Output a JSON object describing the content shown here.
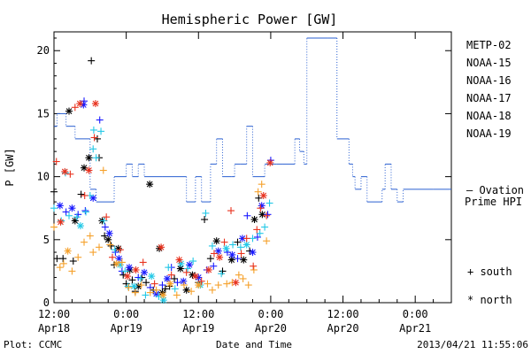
{
  "chart_data": {
    "type": "scatter",
    "title": "Hemispheric Power [GW]",
    "xlabel": "Date and Time",
    "ylabel": "P [GW]",
    "ylim": [
      0,
      21
    ],
    "yticks": [
      "0",
      "5",
      "10",
      "15",
      "20"
    ],
    "xlim": [
      0,
      66
    ],
    "x_unit": "hours since 2013-04-18 12:00 UT",
    "xticks": [
      {
        "x": 0,
        "line1": "12:00",
        "line2": "Apr18"
      },
      {
        "x": 12,
        "line1": "0:00",
        "line2": "Apr19"
      },
      {
        "x": 24,
        "line1": "12:00",
        "line2": "Apr19"
      },
      {
        "x": 36,
        "line1": "0:00",
        "line2": "Apr20"
      },
      {
        "x": 48,
        "line1": "12:00",
        "line2": "Apr20"
      },
      {
        "x": 60,
        "line1": "0:00",
        "line2": "Apr21"
      }
    ],
    "legend": {
      "placement": "right",
      "satellites": [
        {
          "name": "METP-02",
          "color": "#000000"
        },
        {
          "name": "NOAA-15",
          "color": "#1a1aff"
        },
        {
          "name": "NOAA-16",
          "color": "#22c8e6"
        },
        {
          "name": "NOAA-17",
          "color": "#33e68a"
        },
        {
          "name": "NOAA-18",
          "color": "#f5a02a"
        },
        {
          "name": "NOAA-19",
          "color": "#e8321e"
        }
      ],
      "ovation_label_1": "— Ovation",
      "ovation_label_2": "Prime HPI",
      "ovation_color": "#2a5fd1",
      "south_label": "+ south",
      "north_label": "* north"
    },
    "ovation_series": {
      "name": "Ovation Prime HPI",
      "steps": [
        [
          -1,
          14
        ],
        [
          0.5,
          15
        ],
        [
          2,
          14
        ],
        [
          3.5,
          13
        ],
        [
          6,
          9
        ],
        [
          7,
          8
        ],
        [
          10,
          10
        ],
        [
          12,
          11
        ],
        [
          13,
          10
        ],
        [
          14,
          11
        ],
        [
          15,
          10
        ],
        [
          18,
          10
        ],
        [
          22,
          8
        ],
        [
          23.5,
          10
        ],
        [
          24.5,
          8
        ],
        [
          26,
          11
        ],
        [
          27,
          13
        ],
        [
          28,
          10
        ],
        [
          29.5,
          10
        ],
        [
          30,
          11
        ],
        [
          31,
          11
        ],
        [
          32,
          14
        ],
        [
          33,
          10
        ],
        [
          35,
          11
        ],
        [
          36.5,
          11
        ],
        [
          37,
          11
        ],
        [
          38,
          11
        ],
        [
          40,
          13
        ],
        [
          40.8,
          12
        ],
        [
          41.5,
          11
        ],
        [
          42,
          21
        ],
        [
          45.5,
          21
        ],
        [
          47,
          13
        ],
        [
          49,
          11
        ],
        [
          49.6,
          10
        ],
        [
          50,
          9
        ],
        [
          51,
          10
        ],
        [
          52,
          8
        ],
        [
          54.5,
          9
        ],
        [
          55,
          11
        ],
        [
          56,
          9
        ],
        [
          57,
          8
        ],
        [
          58,
          9
        ],
        [
          63,
          9
        ],
        [
          66,
          9
        ]
      ]
    },
    "series": [
      {
        "name": "METP-02",
        "color": "#000000",
        "points": [
          [
            0,
            8.8,
            "s"
          ],
          [
            0.5,
            3.5,
            "s"
          ],
          [
            1.5,
            3.5,
            "s"
          ],
          [
            2.5,
            15.2,
            "n"
          ],
          [
            3.5,
            6.5,
            "n"
          ],
          [
            3.2,
            3.3,
            "s"
          ],
          [
            4.5,
            8.6,
            "s"
          ],
          [
            5,
            10.7,
            "n"
          ],
          [
            6.2,
            19.2,
            "s"
          ],
          [
            5.8,
            11.5,
            "n"
          ],
          [
            7.2,
            13.0,
            "s"
          ],
          [
            7.5,
            11.5,
            "s"
          ],
          [
            8,
            6.5,
            "n"
          ],
          [
            8.4,
            5.3,
            "s"
          ],
          [
            9,
            5.0,
            "n"
          ],
          [
            9.5,
            4.5,
            "s"
          ],
          [
            10,
            3.0,
            "s"
          ],
          [
            10.7,
            4.3,
            "n"
          ],
          [
            11.5,
            2.2,
            "s"
          ],
          [
            12,
            1.5,
            "s"
          ],
          [
            12.6,
            2.6,
            "n"
          ],
          [
            13,
            1.8,
            "s"
          ],
          [
            13.5,
            0.9,
            "s"
          ],
          [
            14,
            1.3,
            "n"
          ],
          [
            14.6,
            2.0,
            "s"
          ],
          [
            15.3,
            1.6,
            "s"
          ],
          [
            15.9,
            9.4,
            "n"
          ],
          [
            16.5,
            1.0,
            "s"
          ],
          [
            17.5,
            4.3,
            "n"
          ],
          [
            18,
            0.8,
            "n"
          ],
          [
            18.5,
            1.1,
            "s"
          ],
          [
            19.2,
            1.3,
            "s"
          ],
          [
            20,
            1.9,
            "s"
          ],
          [
            21,
            2.7,
            "n"
          ],
          [
            22,
            1.0,
            "n"
          ],
          [
            23,
            2.2,
            "n"
          ],
          [
            24,
            1.6,
            "s"
          ],
          [
            25,
            6.6,
            "s"
          ],
          [
            26,
            3.5,
            "s"
          ],
          [
            27,
            4.9,
            "n"
          ],
          [
            28,
            2.5,
            "s"
          ],
          [
            29.5,
            3.4,
            "n"
          ],
          [
            30.5,
            4.8,
            "s"
          ],
          [
            31.5,
            3.4,
            "n"
          ],
          [
            32.5,
            4.1,
            "s"
          ],
          [
            33.3,
            6.6,
            "n"
          ],
          [
            34,
            8.3,
            "s"
          ],
          [
            34.6,
            7.0,
            "n"
          ]
        ]
      },
      {
        "name": "NOAA-15",
        "color": "#1a1aff",
        "points": [
          [
            1,
            7.7,
            "n"
          ],
          [
            2,
            7.2,
            "s"
          ],
          [
            3,
            7.5,
            "n"
          ],
          [
            4,
            7.0,
            "s"
          ],
          [
            4.9,
            15.7,
            "n"
          ],
          [
            5,
            16.0,
            "s"
          ],
          [
            5.2,
            7.3,
            "s"
          ],
          [
            6.5,
            8.3,
            "n"
          ],
          [
            7.6,
            14.5,
            "s"
          ],
          [
            8.5,
            6.0,
            "s"
          ],
          [
            9.2,
            5.5,
            "n"
          ],
          [
            10.2,
            4.0,
            "s"
          ],
          [
            10.8,
            3.5,
            "n"
          ],
          [
            11.3,
            2.5,
            "s"
          ],
          [
            12.5,
            2.8,
            "n"
          ],
          [
            14,
            2.0,
            "s"
          ],
          [
            15,
            2.4,
            "n"
          ],
          [
            16,
            1.2,
            "s"
          ],
          [
            17,
            0.7,
            "n"
          ],
          [
            18,
            1.4,
            "s"
          ],
          [
            18.8,
            1.9,
            "n"
          ],
          [
            19.5,
            2.8,
            "s"
          ],
          [
            20.5,
            1.6,
            "s"
          ],
          [
            21.5,
            1.7,
            "n"
          ],
          [
            22.5,
            3.0,
            "n"
          ],
          [
            24,
            2.0,
            "n"
          ],
          [
            25.4,
            2.6,
            "s"
          ],
          [
            26.5,
            2.9,
            "s"
          ],
          [
            27.3,
            4.1,
            "n"
          ],
          [
            28.8,
            4.0,
            "s"
          ],
          [
            29.6,
            3.8,
            "n"
          ],
          [
            30.5,
            3.5,
            "s"
          ],
          [
            31.3,
            5.1,
            "n"
          ],
          [
            32.1,
            6.9,
            "s"
          ],
          [
            33,
            4.0,
            "n"
          ],
          [
            33.8,
            5.2,
            "s"
          ],
          [
            34.5,
            7.7,
            "n"
          ],
          [
            35.5,
            7.0,
            "s"
          ],
          [
            36,
            11.3,
            "s"
          ]
        ]
      },
      {
        "name": "NOAA-16",
        "color": "#22c8e6",
        "points": [
          [
            0,
            7.5,
            "s"
          ],
          [
            1.2,
            6.5,
            "s"
          ],
          [
            1.9,
            10.3,
            "s"
          ],
          [
            2.5,
            6.9,
            "s"
          ],
          [
            3.8,
            6.8,
            "s"
          ],
          [
            4.4,
            6.1,
            "n"
          ],
          [
            5.3,
            7.2,
            "s"
          ],
          [
            6,
            8.5,
            "s"
          ],
          [
            6.6,
            13.7,
            "s"
          ],
          [
            6.5,
            12.2,
            "s"
          ],
          [
            7,
            11.5,
            "s"
          ],
          [
            7.8,
            13.6,
            "s"
          ],
          [
            8.3,
            6.5,
            "s"
          ],
          [
            10.1,
            4.2,
            "s"
          ],
          [
            11,
            3.0,
            "n"
          ],
          [
            11.8,
            2.5,
            "s"
          ],
          [
            12.3,
            1.3,
            "s"
          ],
          [
            13.3,
            1.3,
            "n"
          ],
          [
            14.4,
            1.9,
            "s"
          ],
          [
            15.2,
            0.6,
            "s"
          ],
          [
            16.2,
            2.1,
            "n"
          ],
          [
            17.4,
            0.5,
            "s"
          ],
          [
            18.2,
            0.2,
            "n"
          ],
          [
            19,
            2.8,
            "s"
          ],
          [
            20.1,
            1.1,
            "s"
          ],
          [
            21.1,
            3.1,
            "n"
          ],
          [
            22.2,
            2.7,
            "s"
          ],
          [
            23.1,
            3.3,
            "s"
          ],
          [
            24.3,
            1.4,
            "n"
          ],
          [
            25.2,
            7.1,
            "s"
          ],
          [
            26.3,
            4.5,
            "s"
          ],
          [
            27.8,
            2.3,
            "s"
          ],
          [
            28.6,
            4.3,
            "n"
          ],
          [
            29.7,
            4.6,
            "s"
          ],
          [
            31,
            4.4,
            "s"
          ],
          [
            32,
            4.6,
            "n"
          ],
          [
            33,
            5.1,
            "s"
          ],
          [
            34.2,
            5.5,
            "s"
          ],
          [
            35,
            6.0,
            "s"
          ],
          [
            35.8,
            7.9,
            "s"
          ]
        ]
      },
      {
        "name": "NOAA-18",
        "color": "#f5a02a",
        "points": [
          [
            0,
            6.0,
            "s"
          ],
          [
            1,
            2.8,
            "s"
          ],
          [
            1.6,
            3.1,
            "s"
          ],
          [
            2.3,
            4.1,
            "n"
          ],
          [
            3,
            2.5,
            "s"
          ],
          [
            4,
            3.6,
            "s"
          ],
          [
            5,
            4.8,
            "s"
          ],
          [
            6,
            5.3,
            "s"
          ],
          [
            6.5,
            4.0,
            "s"
          ],
          [
            7.5,
            4.4,
            "s"
          ],
          [
            8.2,
            10.5,
            "s"
          ],
          [
            9.3,
            4.6,
            "s"
          ],
          [
            10.4,
            3.1,
            "n"
          ],
          [
            11.3,
            3.2,
            "s"
          ],
          [
            12.4,
            1.2,
            "s"
          ],
          [
            13.5,
            0.8,
            "s"
          ],
          [
            14.5,
            1.4,
            "s"
          ],
          [
            16,
            0.8,
            "s"
          ],
          [
            17,
            1.0,
            "s"
          ],
          [
            18.1,
            0.6,
            "n"
          ],
          [
            19.3,
            1.5,
            "n"
          ],
          [
            20.4,
            0.6,
            "s"
          ],
          [
            21.6,
            1.4,
            "s"
          ],
          [
            22.8,
            0.9,
            "s"
          ],
          [
            24,
            1.4,
            "n"
          ],
          [
            25.5,
            1.5,
            "s"
          ],
          [
            26.3,
            1.0,
            "s"
          ],
          [
            27.3,
            1.4,
            "s"
          ],
          [
            28.7,
            1.5,
            "s"
          ],
          [
            29.6,
            1.6,
            "s"
          ],
          [
            30.7,
            2.2,
            "s"
          ],
          [
            31.4,
            1.9,
            "s"
          ],
          [
            32.3,
            1.4,
            "s"
          ],
          [
            33.2,
            2.6,
            "s"
          ],
          [
            33.9,
            8.8,
            "s"
          ],
          [
            34.5,
            9.4,
            "s"
          ],
          [
            35.3,
            4.9,
            "s"
          ]
        ]
      },
      {
        "name": "NOAA-19",
        "color": "#e8321e",
        "points": [
          [
            0.4,
            11.2,
            "s"
          ],
          [
            1.1,
            6.4,
            "n"
          ],
          [
            1.8,
            10.4,
            "n"
          ],
          [
            2.7,
            10.2,
            "s"
          ],
          [
            3.5,
            15.5,
            "s"
          ],
          [
            4.3,
            15.8,
            "n"
          ],
          [
            5.1,
            8.5,
            "s"
          ],
          [
            5.8,
            10.5,
            "n"
          ],
          [
            6.7,
            13.1,
            "s"
          ],
          [
            6.9,
            15.8,
            "n"
          ],
          [
            8.7,
            6.8,
            "s"
          ],
          [
            9.7,
            3.6,
            "s"
          ],
          [
            11,
            4.2,
            "s"
          ],
          [
            12.2,
            2.1,
            "n"
          ],
          [
            13.6,
            2.6,
            "n"
          ],
          [
            14.8,
            3.2,
            "s"
          ],
          [
            16.7,
            1.5,
            "s"
          ],
          [
            17.8,
            4.4,
            "n"
          ],
          [
            19.5,
            2.2,
            "s"
          ],
          [
            20.8,
            3.4,
            "n"
          ],
          [
            22,
            2.4,
            "s"
          ],
          [
            23.5,
            2.1,
            "n"
          ],
          [
            24.5,
            1.7,
            "s"
          ],
          [
            25.7,
            2.6,
            "n"
          ],
          [
            26.6,
            3.9,
            "s"
          ],
          [
            27.5,
            3.6,
            "n"
          ],
          [
            28.3,
            4.8,
            "s"
          ],
          [
            29.4,
            7.3,
            "s"
          ],
          [
            30.2,
            1.6,
            "n"
          ],
          [
            31.1,
            3.9,
            "s"
          ],
          [
            32,
            5.1,
            "s"
          ],
          [
            33.1,
            2.9,
            "s"
          ],
          [
            33.7,
            5.8,
            "s"
          ],
          [
            34.3,
            7.5,
            "s"
          ],
          [
            34.8,
            8.5,
            "n"
          ],
          [
            35.3,
            6.9,
            "s"
          ],
          [
            35.9,
            11.1,
            "n"
          ]
        ]
      }
    ]
  },
  "footer": {
    "left": "Plot: CCMC",
    "right": "2013/04/21 11:55:06"
  }
}
